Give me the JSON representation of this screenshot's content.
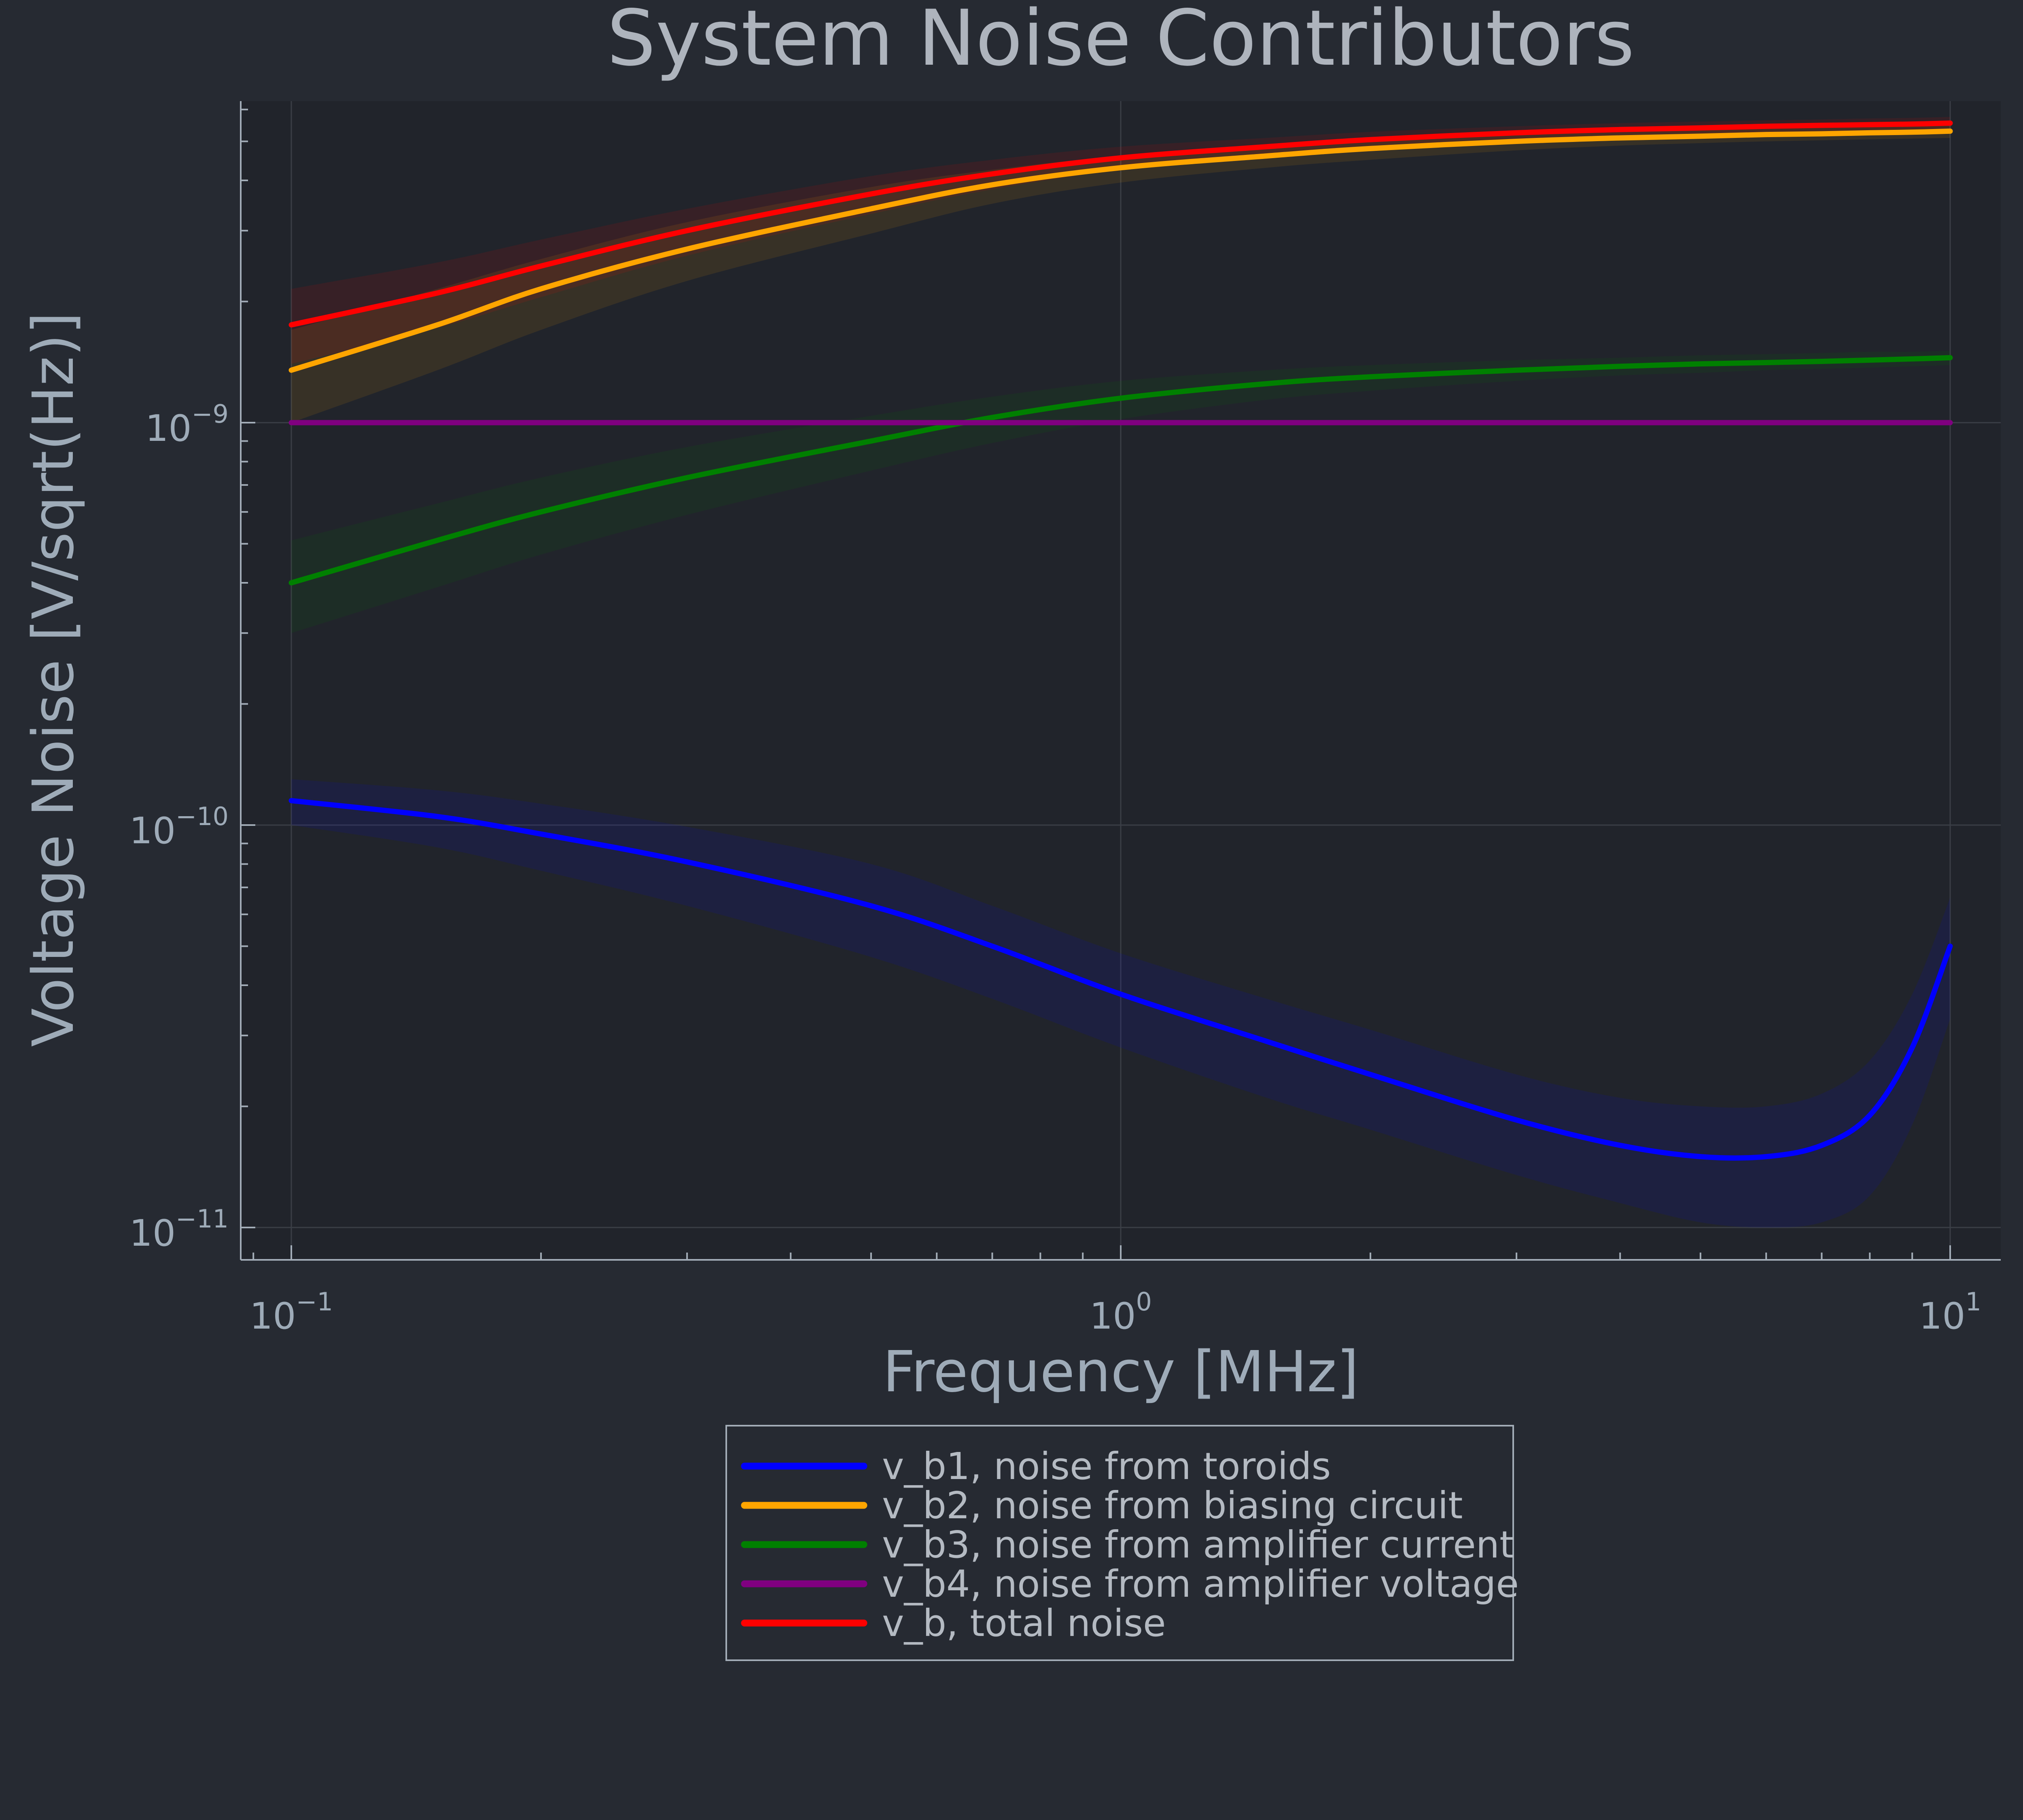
{
  "chart_data": {
    "type": "line",
    "title": "System Noise Contributors",
    "xlabel": "Frequency [MHz]",
    "ylabel": "Voltage Noise [V/sqrt(Hz)]",
    "xscale": "log",
    "yscale": "log",
    "xlim": [
      0.1,
      10
    ],
    "ylim": [
      1e-11,
      6e-09
    ],
    "grid": true,
    "legend_position": "bottom-center",
    "x_ticks": [
      {
        "base": "10",
        "exp": "−1",
        "value": 0.1
      },
      {
        "base": "10",
        "exp": "0",
        "value": 1
      },
      {
        "base": "10",
        "exp": "1",
        "value": 10
      }
    ],
    "y_ticks": [
      {
        "base": "10",
        "exp": "−9",
        "value": 1e-09
      },
      {
        "base": "10",
        "exp": "−10",
        "value": 1e-10
      },
      {
        "base": "10",
        "exp": "−11",
        "value": 1e-11
      }
    ],
    "x": [
      0.1,
      0.15,
      0.2,
      0.3,
      0.5,
      0.7,
      1,
      1.5,
      2,
      3,
      4,
      5,
      6,
      7,
      8,
      9,
      10
    ],
    "series": [
      {
        "name": "v_b1, noise from toroids",
        "color": "#0000ff",
        "values": [
          1.15e-10,
          1.05e-10,
          9.5e-11,
          8.1e-11,
          6.3e-11,
          5e-11,
          3.8e-11,
          2.9e-11,
          2.4e-11,
          1.85e-11,
          1.6e-11,
          1.5e-11,
          1.5e-11,
          1.6e-11,
          1.9e-11,
          2.8e-11,
          5e-11
        ],
        "band_lower": [
          1e-10,
          8.8e-11,
          7.7e-11,
          6.3e-11,
          4.7e-11,
          3.7e-11,
          2.8e-11,
          2.1e-11,
          1.75e-11,
          1.35e-11,
          1.15e-11,
          1.03e-11,
          1e-11,
          1.03e-11,
          1.2e-11,
          1.8e-11,
          3.3e-11
        ],
        "band_upper": [
          1.3e-10,
          1.22e-10,
          1.13e-10,
          9.9e-11,
          8e-11,
          6.3e-11,
          4.8e-11,
          3.7e-11,
          3.1e-11,
          2.4e-11,
          2.1e-11,
          2e-11,
          2e-11,
          2.15e-11,
          2.6e-11,
          3.8e-11,
          6.6e-11
        ]
      },
      {
        "name": "v_b2, noise from biasing circuit",
        "color": "#ffa500",
        "values": [
          1.35e-09,
          1.75e-09,
          2.15e-09,
          2.7e-09,
          3.4e-09,
          3.9e-09,
          4.3e-09,
          4.6e-09,
          4.8e-09,
          5e-09,
          5.1e-09,
          5.15e-09,
          5.2e-09,
          5.22e-09,
          5.25e-09,
          5.27e-09,
          5.3e-09
        ],
        "band_lower": [
          1e-09,
          1.35e-09,
          1.7e-09,
          2.25e-09,
          2.95e-09,
          3.5e-09,
          3.95e-09,
          4.3e-09,
          4.5e-09,
          4.75e-09,
          4.88e-09,
          4.95e-09,
          5e-09,
          5.03e-09,
          5.06e-09,
          5.08e-09,
          5.1e-09
        ],
        "band_upper": [
          1.7e-09,
          2.15e-09,
          2.55e-09,
          3.15e-09,
          3.85e-09,
          4.25e-09,
          4.6e-09,
          4.85e-09,
          5.05e-09,
          5.2e-09,
          5.3e-09,
          5.35e-09,
          5.4e-09,
          5.42e-09,
          5.45e-09,
          5.47e-09,
          5.5e-09
        ]
      },
      {
        "name": "v_b3, noise from amplifier current",
        "color": "#008000",
        "values": [
          4e-10,
          5.1e-10,
          6e-10,
          7.3e-10,
          9e-10,
          1.03e-09,
          1.15e-09,
          1.25e-09,
          1.3e-09,
          1.35e-09,
          1.38e-09,
          1.4e-09,
          1.41e-09,
          1.42e-09,
          1.43e-09,
          1.44e-09,
          1.45e-09
        ],
        "band_lower": [
          3e-10,
          3.9e-10,
          4.7e-10,
          5.9e-10,
          7.6e-10,
          8.9e-10,
          1.02e-09,
          1.14e-09,
          1.2e-09,
          1.27e-09,
          1.31e-09,
          1.33e-09,
          1.35e-09,
          1.36e-09,
          1.37e-09,
          1.38e-09,
          1.39e-09
        ],
        "band_upper": [
          5.1e-10,
          6.3e-10,
          7.3e-10,
          8.7e-10,
          1.04e-09,
          1.16e-09,
          1.27e-09,
          1.35e-09,
          1.39e-09,
          1.43e-09,
          1.45e-09,
          1.47e-09,
          1.48e-09,
          1.49e-09,
          1.5e-09,
          1.5e-09,
          1.51e-09
        ]
      },
      {
        "name": "v_b4, noise from amplifier voltage",
        "color": "#800080",
        "values": [
          1e-09,
          1e-09,
          1e-09,
          1e-09,
          1e-09,
          1e-09,
          1e-09,
          1e-09,
          1e-09,
          1e-09,
          1e-09,
          1e-09,
          1e-09,
          1e-09,
          1e-09,
          1e-09,
          1e-09
        ]
      },
      {
        "name": "v_b, total noise",
        "color": "#ff0000",
        "values": [
          1.75e-09,
          2.1e-09,
          2.45e-09,
          3e-09,
          3.7e-09,
          4.15e-09,
          4.55e-09,
          4.85e-09,
          5.05e-09,
          5.25e-09,
          5.35e-09,
          5.4e-09,
          5.45e-09,
          5.48e-09,
          5.5e-09,
          5.52e-09,
          5.55e-09
        ],
        "band_lower": [
          1.4e-09,
          1.72e-09,
          2.05e-09,
          2.6e-09,
          3.3e-09,
          3.8e-09,
          4.25e-09,
          4.6e-09,
          4.8e-09,
          5e-09,
          5.12e-09,
          5.18e-09,
          5.23e-09,
          5.26e-09,
          5.29e-09,
          5.31e-09,
          5.33e-09
        ],
        "band_upper": [
          2.15e-09,
          2.5e-09,
          2.85e-09,
          3.4e-09,
          4.1e-09,
          4.5e-09,
          4.85e-09,
          5.1e-09,
          5.28e-09,
          5.45e-09,
          5.55e-09,
          5.6e-09,
          5.64e-09,
          5.67e-09,
          5.7e-09,
          5.72e-09,
          5.75e-09
        ]
      }
    ]
  }
}
